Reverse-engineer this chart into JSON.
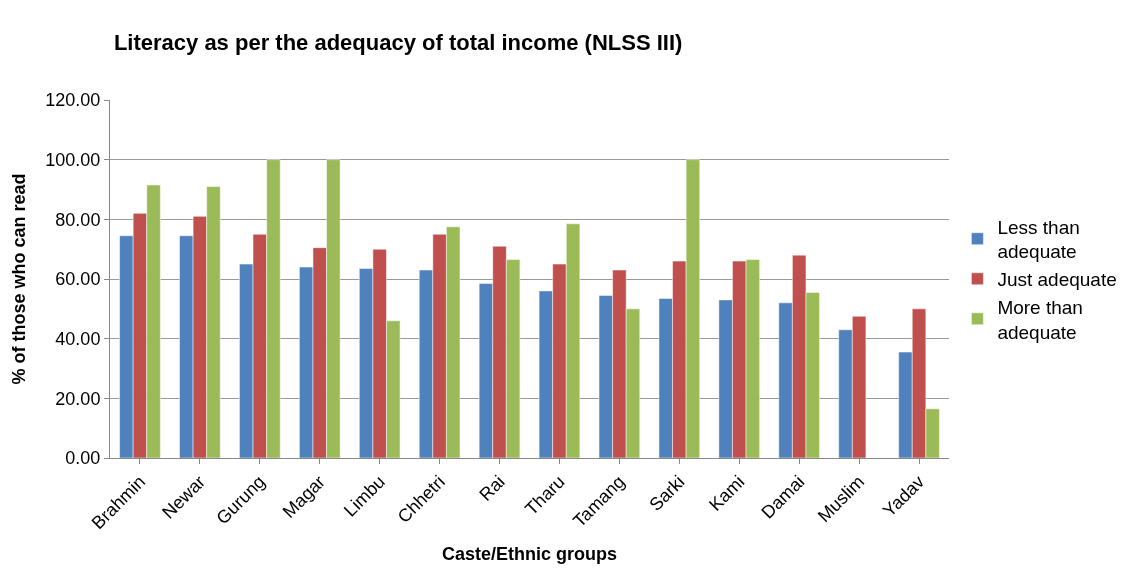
{
  "chart_data": {
    "type": "bar",
    "title": "Literacy as per the adequacy of total income (NLSS III)",
    "xlabel": "Caste/Ethnic groups",
    "ylabel": "% of those who can read",
    "categories": [
      "Brahmin",
      "Newar",
      "Gurung",
      "Magar",
      "Limbu",
      "Chhetri",
      "Rai",
      "Tharu",
      "Tamang",
      "Sarki",
      "Kami",
      "Damai",
      "Muslim",
      "Yadav"
    ],
    "series": [
      {
        "name": "Less than adequate",
        "color": "#4f81bd",
        "values": [
          74.5,
          74.5,
          65,
          64,
          63.5,
          63,
          58.5,
          56,
          54.5,
          53.5,
          53,
          52,
          43,
          35.5
        ]
      },
      {
        "name": "Just adequate",
        "color": "#c0504d",
        "values": [
          82,
          81,
          75,
          70.5,
          70,
          75,
          71,
          65,
          63,
          66,
          66,
          68,
          47.5,
          50
        ]
      },
      {
        "name": "More than adequate",
        "color": "#9bbb59",
        "values": [
          91.5,
          91,
          100,
          100,
          46,
          77.5,
          66.5,
          78.5,
          50,
          100,
          66.5,
          55.5,
          null,
          16.5
        ]
      }
    ],
    "ylim": [
      0,
      120
    ],
    "yticks": [
      {
        "value": 0,
        "label": "0.00"
      },
      {
        "value": 20,
        "label": "20.00"
      },
      {
        "value": 40,
        "label": "40.00"
      },
      {
        "value": 60,
        "label": "60.00"
      },
      {
        "value": 80,
        "label": "80.00"
      },
      {
        "value": 100,
        "label": "100.00"
      },
      {
        "value": 120,
        "label": "120.00"
      }
    ],
    "grid": "y",
    "legend": "right"
  }
}
